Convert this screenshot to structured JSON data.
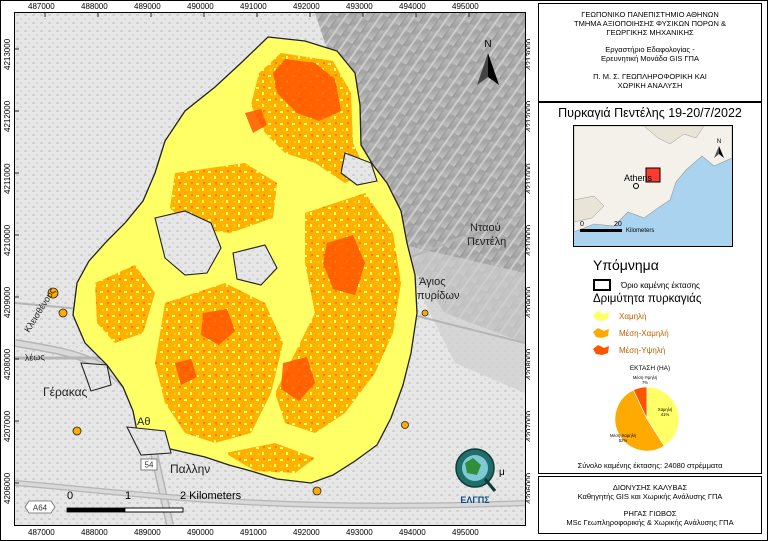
{
  "map": {
    "x_ticks": [
      "487000",
      "488000",
      "489000",
      "490000",
      "491000",
      "492000",
      "493000",
      "494000",
      "495000"
    ],
    "y_ticks": [
      "4213000",
      "4212000",
      "4211000",
      "4210000",
      "4209000",
      "4208000",
      "4207000",
      "4206000"
    ],
    "places": {
      "gerakas": "Γέρακας",
      "athinon": "Αθ",
      "pallini": "Παλλην",
      "agios_line1": "Άγιος",
      "agios_line2": "πυρίδων",
      "ntaou_line1": "Νταού",
      "ntaou_line2": "Πεντέλη",
      "kleisthenous": "Κλεισθένους",
      "leoforos": "λέως",
      "road_a64": "A64",
      "road_54": "54"
    },
    "north_label": "N",
    "scale_bar": {
      "labels": [
        "0",
        "1",
        "2 Kilometers"
      ]
    },
    "logo": {
      "text": "ΕΛΓΠΣ",
      "side_text": "μ"
    }
  },
  "title_panel": {
    "line1": "ΓΕΩΠΟΝΙΚΟ ΠΑΝΕΠΙΣΤΗΜΙΟ ΑΘΗΝΩΝ",
    "line2": "ΤΜΗΜΑ ΑΞΙΟΠΟΙΗΣΗΣ ΦΥΣΙΚΩΝ ΠΟΡΩΝ &",
    "line3": "ΓΕΩΡΓΙΚΗΣ ΜΗΧΑΝΙΚΗΣ",
    "line4": "Εργαστήριο Εδαφολογίας -",
    "line5": "Ερευνητική Μονάδα GIS ΓΠΑ",
    "line6": "Π. Μ. Σ. ΓΕΩΠΛΗΡΟΦΟΡΙΚΗ ΚΑΙ",
    "line7": "ΧΩΡΙΚΗ ΑΝΑΛΥΣΗ"
  },
  "legend_panel": {
    "fire_title": "Πυρκαγιά Πεντέλης 19-20/7/2022",
    "inset": {
      "place": "Athens",
      "scale_0": "0",
      "scale_20": "20",
      "scale_unit": "Kilometers",
      "north": "N"
    },
    "legend_title": "Υπόμνημα",
    "boundary_label": "Όριο καμένης έκτασης",
    "severity_title": "Δριμύτητα πυρκαγιάς",
    "classes": [
      {
        "label": "Χαμηλή",
        "color": "#ffff66"
      },
      {
        "label": "Μέση-Χαμηλή",
        "color": "#ffaa00"
      },
      {
        "label": "Μέση-Υψηλή",
        "color": "#ff5500"
      }
    ],
    "pie_title": "ΕΚΤΑΣΗ (HA)",
    "pie_labels": [
      {
        "name": "Χαμηλή",
        "pct": "41%"
      },
      {
        "name": "Μέση-Χαμηλή",
        "pct": "52%"
      },
      {
        "name": "Μέση-Υψηλή",
        "pct": "7%"
      }
    ],
    "total_text": "Σύνολο καμένης έκτασης:  24080 στρέμματα"
  },
  "chart_data": {
    "type": "pie",
    "title": "ΕΚΤΑΣΗ (HA)",
    "categories": [
      "Χαμηλή",
      "Μέση-Χαμηλή",
      "Μέση-Υψηλή"
    ],
    "values": [
      41,
      52,
      7
    ],
    "colors": [
      "#ffff66",
      "#ffaa00",
      "#ff5500"
    ]
  },
  "credits_panel": {
    "line1": "ΔΙΟΝΥΣΗΣ ΚΑΛΥΒΑΣ",
    "line2": "Καθηγητής GIS και Χωρικής Ανάλυσης ΓΠΑ",
    "line3": "ΡΗΓΑΣ ΓΙΩΒΟΣ",
    "line4": "MSc Γεωπληροφορικής & Χωρικής Ανάλυσης ΓΠΑ"
  }
}
